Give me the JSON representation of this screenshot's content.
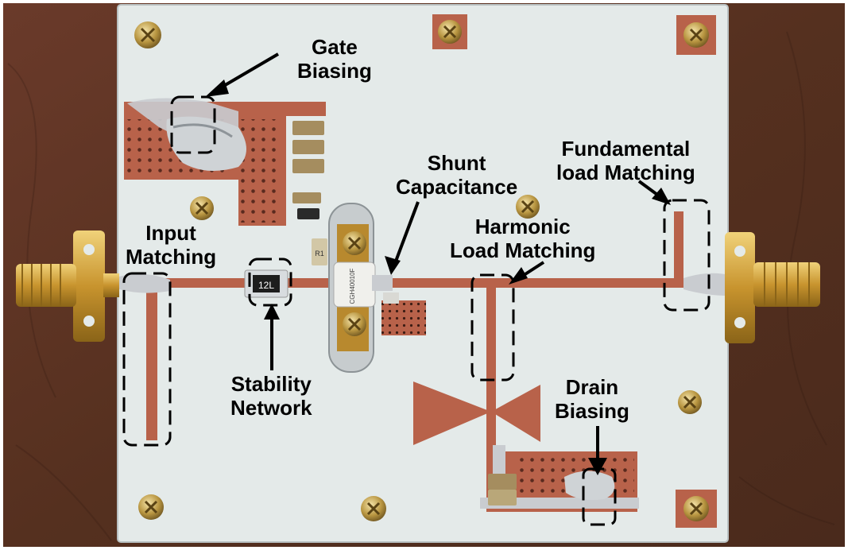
{
  "annotations": {
    "gate_biasing": [
      "Gate",
      "Biasing"
    ],
    "shunt_capacitance": [
      "Shunt",
      "Capacitance"
    ],
    "fundamental_load_matching": [
      "Fundamental",
      "load Matching"
    ],
    "harmonic_load_matching": [
      "Harmonic",
      "Load Matching"
    ],
    "input_matching": [
      "Input",
      "Matching"
    ],
    "stability_network": [
      "Stability",
      "Network"
    ],
    "drain_biasing": [
      "Drain",
      "Biasing"
    ]
  },
  "components": {
    "resistor_marking": "12L",
    "transistor_marking": "CGH40010F",
    "capacitor_marking": "R1"
  },
  "colors": {
    "wood": "#5e3326",
    "board": "#e4eae9",
    "copper": "#b8624a",
    "solder": "#c9ccd0",
    "gold": "#d2a23c"
  }
}
